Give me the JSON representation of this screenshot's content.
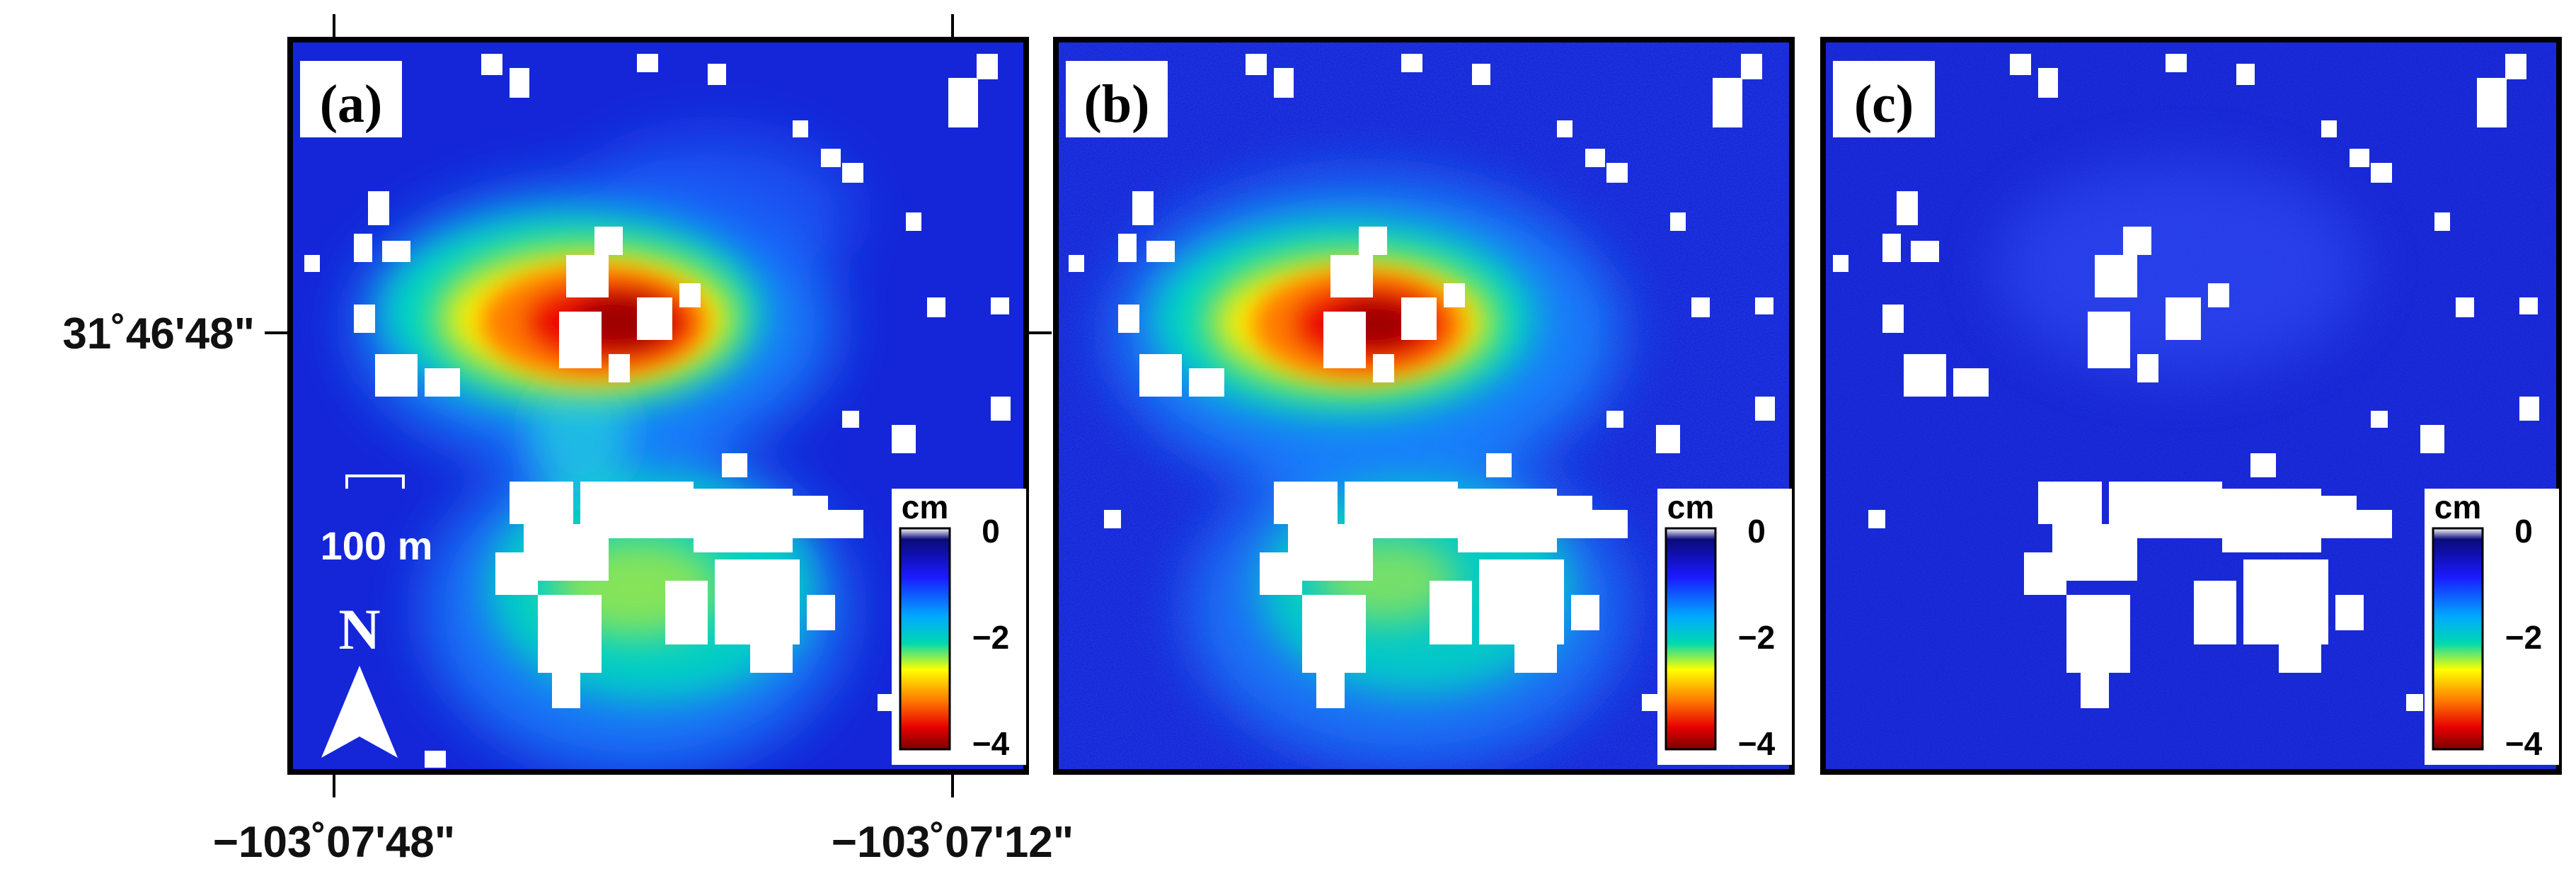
{
  "latitude_label": "31˚46'48\"",
  "longitude_labels": [
    "−103˚07'48\"",
    "−103˚07'12\""
  ],
  "scale_bar": {
    "label": "100 m"
  },
  "north_arrow": {
    "label": "N",
    "icon": "north-arrow-icon"
  },
  "colorbar": {
    "unit": "cm",
    "ticks": [
      "0",
      "−2",
      "−4"
    ],
    "values": [
      0,
      -2,
      -4
    ],
    "colors": [
      "#ffffff",
      "#1a1aff",
      "#00aaff",
      "#00e0c0",
      "#ffff00",
      "#ff7700",
      "#ee0000",
      "#800000"
    ]
  },
  "panels": [
    {
      "id": "a",
      "label": "(a)"
    },
    {
      "id": "b",
      "label": "(b)"
    },
    {
      "id": "c",
      "label": "(c)"
    }
  ]
}
